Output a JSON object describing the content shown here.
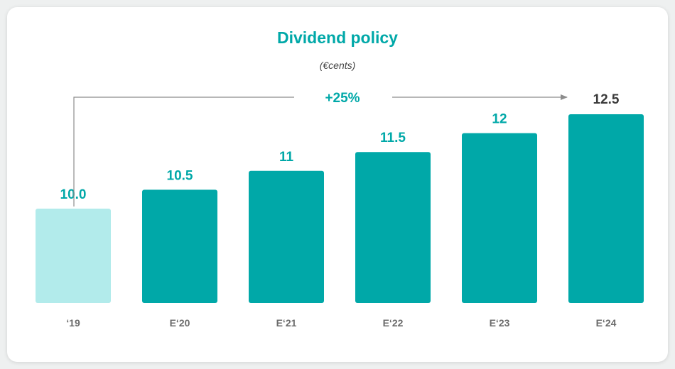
{
  "colors": {
    "accent": "#00a8a8",
    "bar": "#00a8a8",
    "bar_highlight": "#b2ebeb",
    "label_last": "#3a3a3a",
    "tick_label": "#6b6b6b",
    "arrow": "#8c8c8c"
  },
  "annotation": {
    "growth": "+25%"
  },
  "chart_data": {
    "type": "bar",
    "title": "Dividend policy",
    "subtitle": "(€cents)",
    "categories": [
      "‘19",
      "E‘20",
      "E‘21",
      "E‘22",
      "E‘23",
      "E‘24"
    ],
    "values": [
      10.0,
      10.5,
      11,
      11.5,
      12,
      12.5
    ],
    "value_labels": [
      "10.0",
      "10.5",
      "11",
      "11.5",
      "12",
      "12.5"
    ],
    "ylim": [
      7.5,
      12.5
    ],
    "grid": false,
    "legend": "none",
    "annotations": [
      "+25%"
    ]
  }
}
